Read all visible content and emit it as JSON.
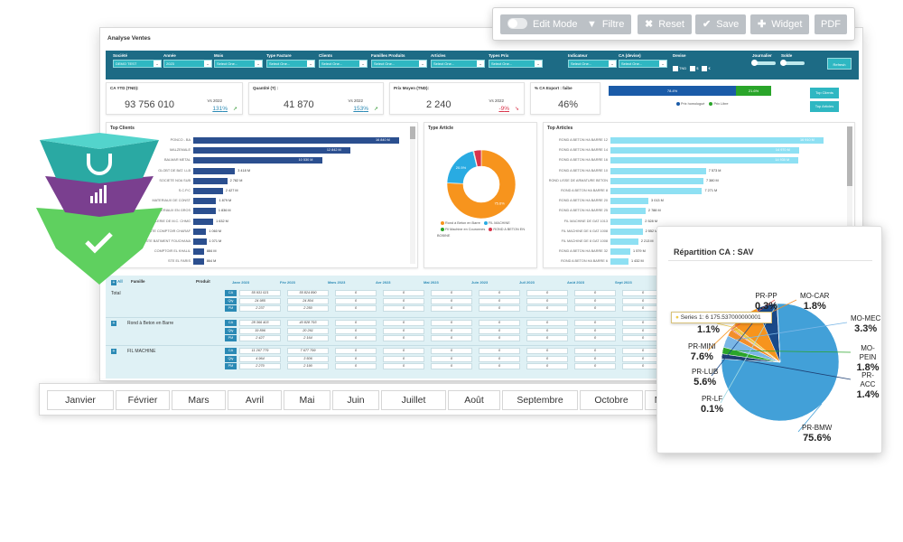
{
  "toolbar": {
    "edit_mode": "Edit Mode",
    "filter": "Filtre",
    "reset": "Reset",
    "save": "Save",
    "widget": "Widget",
    "pdf": "PDF"
  },
  "dashboard": {
    "title": "Analyse Ventes",
    "filters": [
      {
        "label": "Société",
        "value": "DEMO TEST"
      },
      {
        "label": "Année",
        "value": "2023"
      },
      {
        "label": "Mois",
        "value": "Select One..."
      },
      {
        "label": "Type Facture",
        "value": "Select One..."
      },
      {
        "label": "Clients",
        "value": "Select One..."
      },
      {
        "label": "Familles Produits",
        "value": "Select One..."
      },
      {
        "label": "Articles",
        "value": "Select One..."
      },
      {
        "label": "Types Prix",
        "value": "Select One..."
      },
      {
        "label": "Indicateur",
        "value": "Select One..."
      },
      {
        "label": "CA (devise)",
        "value": "Select One..."
      }
    ],
    "devise": {
      "label": "Devise",
      "options": [
        "TND",
        "$",
        "€"
      ]
    },
    "journalier": "Journalier",
    "solde": "Solde",
    "refresh": "Refresh",
    "kpis": [
      {
        "title": "CA YTD (TND):",
        "value": "93 756 010",
        "vs": "Vs 2022",
        "pct": "131",
        "unit": "%",
        "trend": "up"
      },
      {
        "title": "Quantité (T) :",
        "value": "41 870",
        "vs": "Vs 2022",
        "pct": "153",
        "unit": "%",
        "trend": "up"
      },
      {
        "title": "Prix Moyen (TND):",
        "value": "2 240",
        "vs": "Vs 2022",
        "pct": "-9",
        "unit": "%",
        "trend": "down"
      },
      {
        "title": "% CA Export : faibe",
        "value": "46%"
      }
    ],
    "share_bar": {
      "a": "78.4%",
      "b": "21.6%",
      "a_frac": 0.784,
      "color_a": "#1a5ba8",
      "color_b": "#2aa52a"
    },
    "share_legend": [
      "Prix homologué",
      "Prix Libre"
    ],
    "side_buttons": [
      "Top Clients",
      "Top Articles"
    ],
    "top_clients": {
      "title": "Top Clients",
      "color": "#2b4f8f",
      "max": 16840,
      "rows": [
        {
          "name": "PONCO - BA",
          "value": 16840,
          "label": "16 840 M"
        },
        {
          "name": "MALZEMALE",
          "value": 12842,
          "label": "12 842 M"
        },
        {
          "name": "BALMAR METAL",
          "value": 10530,
          "label": "10 530 M"
        },
        {
          "name": "GLOBT DE BAT. LLB",
          "value": 3418,
          "label": "3 418 M"
        },
        {
          "name": "SOCIETE NOA SUB",
          "value": 2782,
          "label": "2 782 M"
        },
        {
          "name": "S.C.P.C",
          "value": 2427,
          "label": "2 427 M"
        },
        {
          "name": "MATERIAUX DE CONST",
          "value": 1879,
          "label": "1 879 M"
        },
        {
          "name": "MATERIAUX EN GROS",
          "value": 1836,
          "label": "1 836 M"
        },
        {
          "name": "QUINCAILLERIE DE M.C. CHMG",
          "value": 1632,
          "label": "1 632 M"
        },
        {
          "name": "STE COMPTOIR CHARAF",
          "value": 1060,
          "label": "1 060 M"
        },
        {
          "name": "STE BATIMENT FOUCHANA",
          "value": 1071,
          "label": "1 071 M"
        },
        {
          "name": "COMPTOIR EL KHALIL",
          "value": 884,
          "label": "884 M"
        },
        {
          "name": "STE EL FARIS",
          "value": 864,
          "label": "864 M"
        }
      ]
    },
    "type_article": {
      "title": "Type Article",
      "slices": [
        {
          "name": "Rond à Beton en Barre",
          "value": 75.6,
          "label": "75.6%",
          "color": "#f7941d"
        },
        {
          "name": "FIL MACHINE",
          "value": 20.5,
          "label": "20.5%",
          "color": "#29abe2"
        },
        {
          "name": "Fil Machine en Couronnes",
          "value": 0.4,
          "label": "",
          "color": "#2aa52a"
        },
        {
          "name": "ROND A BETON EN BOBINE",
          "value": 3.5,
          "label": "",
          "color": "#d9344b"
        }
      ]
    },
    "top_articles": {
      "title": "Top Articles",
      "color": "#8ee0f3",
      "max": 16910,
      "rows": [
        {
          "name": "ROND A BETON HA BARRE 12",
          "value": 16910,
          "label": "16 910 M"
        },
        {
          "name": "ROND A BETON HA BARRE 14",
          "value": 14970,
          "label": "14 970 M"
        },
        {
          "name": "ROND A BETON HA BARRE 16",
          "value": 14930,
          "label": "14 930 M"
        },
        {
          "name": "ROND A BETON HA BARRE 10",
          "value": 7573,
          "label": "7 573 M"
        },
        {
          "name": "ROND LISSE DE ARMATURE BETON",
          "value": 7380,
          "label": "7 380 M"
        },
        {
          "name": "ROND A BETON HA BARRE 8",
          "value": 7271,
          "label": "7 271 M"
        },
        {
          "name": "ROND A BETON HA BARRE 20",
          "value": 3013,
          "label": "3 013 M"
        },
        {
          "name": "ROND A BETON HA BARRE 25",
          "value": 2788,
          "label": "2 788 M"
        },
        {
          "name": "FIL MACHINE DE GAT 1013",
          "value": 2528,
          "label": "2 528 M"
        },
        {
          "name": "FIL MACHINE DE 6 GAT 1008",
          "value": 2552,
          "label": "2 552 M"
        },
        {
          "name": "FIL MACHINE DE 8 GAT 1008",
          "value": 2213,
          "label": "2 213 M"
        },
        {
          "name": "ROND A BETON HA BARRE 32",
          "value": 1579,
          "label": "1 579 M"
        },
        {
          "name": "ROND A BETON HA BARRE 6",
          "value": 1432,
          "label": "1 432 M"
        }
      ]
    },
    "table": {
      "all_label": "All",
      "headers": {
        "famille": "Famille",
        "produit": "Produit"
      },
      "months": [
        "Janv 2023",
        "Fév 2023",
        "Mars 2023",
        "Avr 2023",
        "Mai 2023",
        "Juin 2023",
        "Juil 2023",
        "Août 2023",
        "Sept 2023"
      ],
      "metrics": [
        "CA",
        "Qty",
        "PM"
      ],
      "groups": [
        {
          "name": "Total",
          "values": [
            [
              "55 931 021",
              "55 824 890",
              "0",
              "0",
              "0",
              "0",
              "0",
              "0",
              "0"
            ],
            [
              "24 985",
              "24 804",
              "0",
              "0",
              "0",
              "0",
              "0",
              "0",
              "0"
            ],
            [
              "2 237",
              "2 250",
              "0",
              "0",
              "0",
              "0",
              "0",
              "0",
              "0"
            ]
          ]
        },
        {
          "name": "Rond à Beton en Barre",
          "values": [
            [
              "28 366 403",
              "40 828 793",
              "0",
              "0",
              "0",
              "0",
              "0",
              "0",
              "0"
            ],
            [
              "19 896",
              "20 261",
              "0",
              "0",
              "0",
              "0",
              "0",
              "0",
              "0"
            ],
            [
              "2 427",
              "2 164",
              "0",
              "0",
              "0",
              "0",
              "0",
              "0",
              "0"
            ]
          ]
        },
        {
          "name": "FIL MACHINE",
          "values": [
            [
              "11 267 779",
              "7 677 799",
              "0",
              "0",
              "0",
              "0",
              "0",
              "0",
              "0"
            ],
            [
              "4 964",
              "3 506",
              "0",
              "0",
              "0",
              "0",
              "0",
              "0",
              "0"
            ],
            [
              "2 270",
              "2 190",
              "0",
              "0",
              "0",
              "0",
              "0",
              "0",
              "0"
            ]
          ]
        }
      ]
    }
  },
  "months_bar": [
    "Janvier",
    "Février",
    "Mars",
    "Avril",
    "Mai",
    "Juin",
    "Juillet",
    "Août",
    "Septembre",
    "Octobre",
    "Novembre"
  ],
  "pie": {
    "title": "Répartition CA : SAV",
    "tooltip": "Series 1: 6 175.537000000001",
    "slices": [
      {
        "name": "PR-BMW",
        "label": "75.6%",
        "value": 75.6,
        "color": "#42a0d8"
      },
      {
        "name": "PR-ACC",
        "label": "1.4%",
        "value": 1.4,
        "color": "#1d3f73"
      },
      {
        "name": "MO-PEIN",
        "label": "1.8%",
        "value": 1.8,
        "color": "#2aa52a"
      },
      {
        "name": "MO-MEC",
        "label": "3.3%",
        "value": 3.3,
        "color": "#7ab6e6"
      },
      {
        "name": "MO-CAR",
        "label": "1.8%",
        "value": 1.8,
        "color": "#f28e2b"
      },
      {
        "name": "PR-PP",
        "label": "0.3%",
        "value": 0.3,
        "color": "#e15759"
      },
      {
        "name": "PR-LF",
        "label": "1.1%",
        "value": 1.1,
        "color": "#edc949"
      },
      {
        "name": "PR-MINI",
        "label": "7.6%",
        "value": 7.6,
        "color": "#f7941d"
      },
      {
        "name": "PR-LUB",
        "label": "5.6%",
        "value": 5.6,
        "color": "#1a4a8a"
      },
      {
        "name": "PR-LF",
        "label": "0.1%",
        "value": 0.1,
        "color": "#9edae5"
      }
    ]
  }
}
